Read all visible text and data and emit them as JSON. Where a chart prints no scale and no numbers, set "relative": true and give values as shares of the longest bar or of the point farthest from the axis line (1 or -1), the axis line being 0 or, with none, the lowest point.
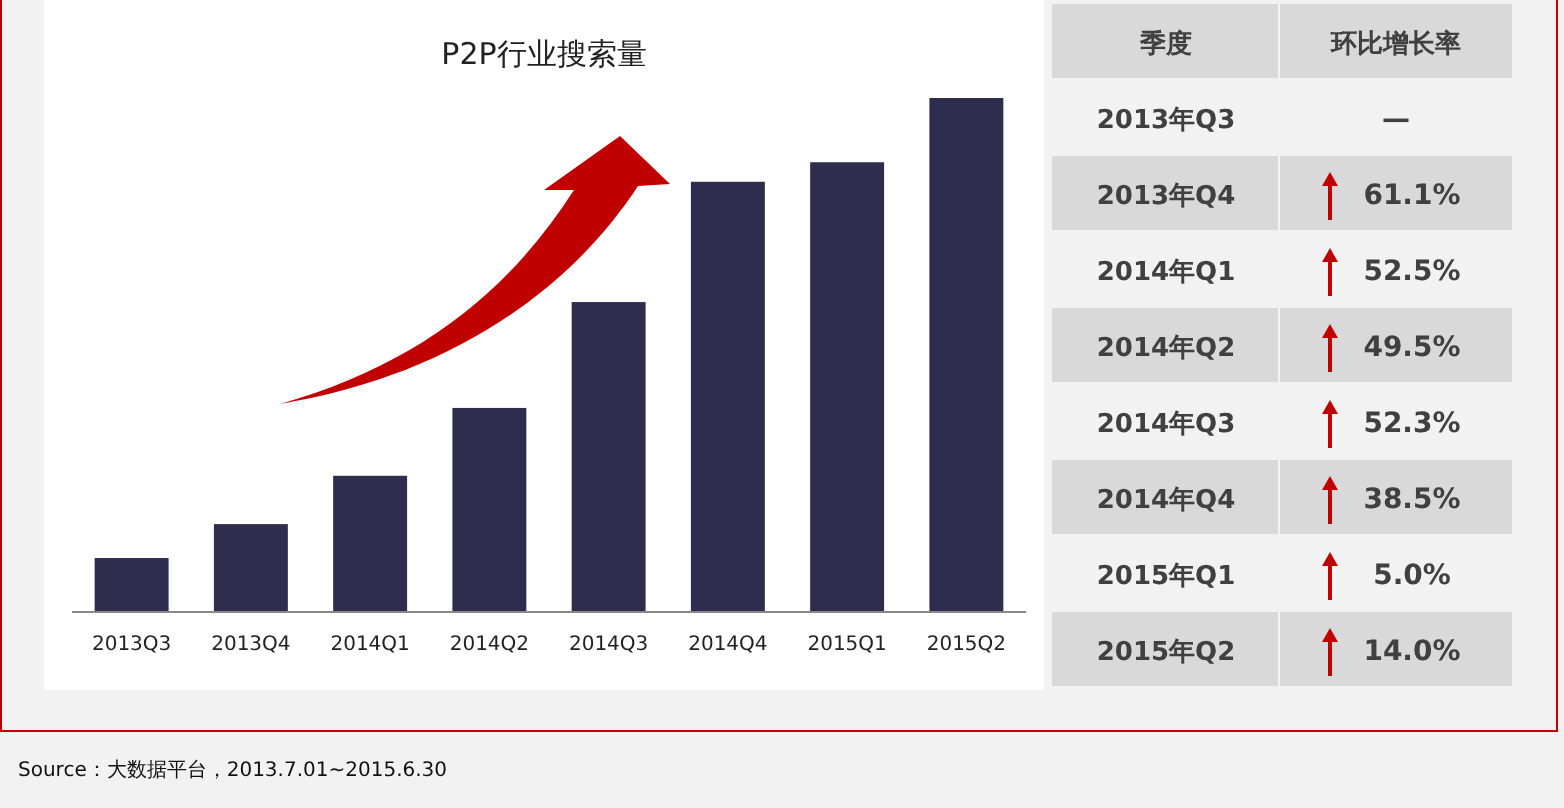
{
  "chart_data": [
    {
      "type": "bar",
      "title": "P2P行业搜索量",
      "relative": true,
      "categories": [
        "2013Q3",
        "2013Q4",
        "2014Q1",
        "2014Q2",
        "2014Q3",
        "2014Q4",
        "2015Q1",
        "2015Q2"
      ],
      "values": [
        0.105,
        0.171,
        0.265,
        0.397,
        0.603,
        0.837,
        0.875,
        1
      ],
      "color": "#2e2d4d",
      "annotations": [
        "Source：大数据平台，2013.7.01~2015.6.30"
      ]
    },
    {
      "type": "other",
      "annotations": [
        "季度",
        "环比增长率"
      ],
      "categories": [
        "2013年Q3",
        "2013年Q4",
        "2014年Q1",
        "2014年Q2",
        "2014年Q3",
        "2014年Q4",
        "2015年Q1",
        "2015年Q2"
      ],
      "values": [
        null,
        61.1,
        52.5,
        49.5,
        52.3,
        38.5,
        5.0,
        14.0
      ],
      "value_labels": [
        "—",
        "61.1%",
        "52.5%",
        "49.5%",
        "52.3%",
        "38.5%",
        "5.0%",
        "14.0%"
      ]
    }
  ]
}
